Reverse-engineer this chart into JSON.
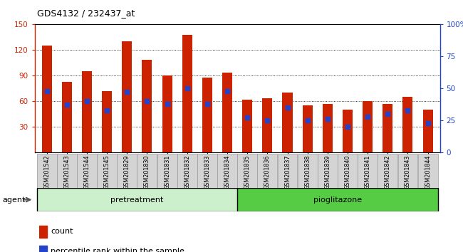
{
  "title": "GDS4132 / 232437_at",
  "categories": [
    "GSM201542",
    "GSM201543",
    "GSM201544",
    "GSM201545",
    "GSM201829",
    "GSM201830",
    "GSM201831",
    "GSM201832",
    "GSM201833",
    "GSM201834",
    "GSM201835",
    "GSM201836",
    "GSM201837",
    "GSM201838",
    "GSM201839",
    "GSM201840",
    "GSM201841",
    "GSM201842",
    "GSM201843",
    "GSM201844"
  ],
  "bar_values": [
    125,
    82,
    95,
    72,
    130,
    108,
    90,
    137,
    87,
    93,
    62,
    63,
    70,
    55,
    57,
    50,
    60,
    57,
    65,
    50
  ],
  "percentile_values": [
    48,
    37,
    40,
    33,
    47,
    40,
    38,
    50,
    38,
    48,
    27,
    25,
    35,
    25,
    26,
    20,
    28,
    30,
    33,
    23
  ],
  "bar_color": "#cc2200",
  "dot_color": "#2244cc",
  "ylim_left": [
    0,
    150
  ],
  "ylim_right": [
    0,
    100
  ],
  "yticks_left": [
    30,
    60,
    90,
    120,
    150
  ],
  "yticks_right": [
    0,
    25,
    50,
    75,
    100
  ],
  "group1_label": "pretreatment",
  "group2_label": "pioglitazone",
  "group1_n": 10,
  "group2_n": 10,
  "group1_color": "#ccf0cc",
  "group2_color": "#55cc44",
  "agent_label": "agent",
  "legend_count_label": "count",
  "legend_pct_label": "percentile rank within the sample",
  "bar_width": 0.5,
  "n": 20
}
